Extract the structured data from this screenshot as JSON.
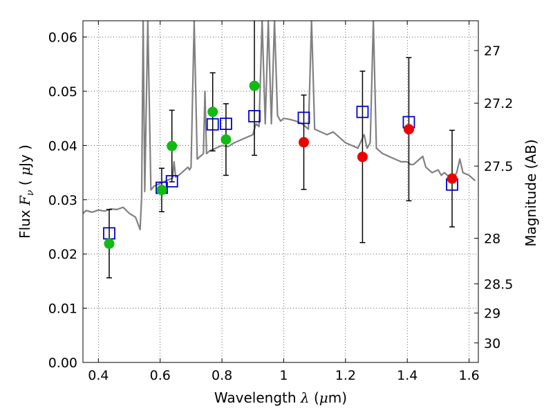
{
  "chart_data": {
    "type": "scatter",
    "xlabel": {
      "text": "Wavelength",
      "symbol": "λ",
      "unit_open": "(",
      "unit_mu": "μ",
      "unit_rest": "m)"
    },
    "ylabel": {
      "text": "Flux",
      "symbol": "F",
      "subscript": "ν",
      "unit_open": "(",
      "unit_mu": "μ",
      "unit_rest": "Jy )"
    },
    "y2label": "Magnitude (AB)",
    "xlim": [
      0.35,
      1.63
    ],
    "ylim": [
      0.0,
      0.063
    ],
    "x_ticks": [
      {
        "value": 0.4,
        "label": "0.4"
      },
      {
        "value": 0.6,
        "label": "0.6"
      },
      {
        "value": 0.8,
        "label": "0.8"
      },
      {
        "value": 1.0,
        "label": "1"
      },
      {
        "value": 1.2,
        "label": "1.2"
      },
      {
        "value": 1.4,
        "label": "1.4"
      },
      {
        "value": 1.6,
        "label": "1.6"
      }
    ],
    "y_ticks": [
      {
        "value": 0.0,
        "label": "0.00"
      },
      {
        "value": 0.01,
        "label": "0.01"
      },
      {
        "value": 0.02,
        "label": "0.02"
      },
      {
        "value": 0.03,
        "label": "0.03"
      },
      {
        "value": 0.04,
        "label": "0.04"
      },
      {
        "value": 0.05,
        "label": "0.05"
      },
      {
        "value": 0.06,
        "label": "0.06"
      }
    ],
    "y2_ticks": [
      {
        "flux": 0.0575,
        "label": "27"
      },
      {
        "flux": 0.0478,
        "label": "27.2"
      },
      {
        "flux": 0.0362,
        "label": "27.5"
      },
      {
        "flux": 0.0229,
        "label": "28"
      },
      {
        "flux": 0.0145,
        "label": "28.5"
      },
      {
        "flux": 0.0091,
        "label": "29"
      },
      {
        "flux": 0.0036,
        "label": "30"
      }
    ],
    "grid": true,
    "colors": {
      "model": "#808080",
      "model_points": "#0000cc",
      "optical_obs": "#11bb11",
      "nir_obs": "#ee0000",
      "errorbar": "#000000"
    },
    "model_spectrum": [
      [
        0.35,
        0.0275
      ],
      [
        0.36,
        0.028
      ],
      [
        0.38,
        0.0277
      ],
      [
        0.4,
        0.0281
      ],
      [
        0.42,
        0.0279
      ],
      [
        0.44,
        0.0283
      ],
      [
        0.46,
        0.0282
      ],
      [
        0.48,
        0.0286
      ],
      [
        0.5,
        0.0275
      ],
      [
        0.52,
        0.0268
      ],
      [
        0.535,
        0.0245
      ],
      [
        0.54,
        0.0305
      ],
      [
        0.545,
        0.063
      ],
      [
        0.55,
        0.0315
      ],
      [
        0.56,
        0.063
      ],
      [
        0.57,
        0.0318
      ],
      [
        0.58,
        0.0325
      ],
      [
        0.6,
        0.033
      ],
      [
        0.62,
        0.0335
      ],
      [
        0.64,
        0.034
      ],
      [
        0.645,
        0.037
      ],
      [
        0.65,
        0.0342
      ],
      [
        0.66,
        0.0345
      ],
      [
        0.67,
        0.035
      ],
      [
        0.68,
        0.0355
      ],
      [
        0.69,
        0.036
      ],
      [
        0.695,
        0.0355
      ],
      [
        0.7,
        0.036
      ],
      [
        0.71,
        0.063
      ],
      [
        0.72,
        0.0375
      ],
      [
        0.73,
        0.038
      ],
      [
        0.74,
        0.0385
      ],
      [
        0.745,
        0.05
      ],
      [
        0.75,
        0.0385
      ],
      [
        0.76,
        0.039
      ],
      [
        0.78,
        0.0395
      ],
      [
        0.8,
        0.04
      ],
      [
        0.82,
        0.0398
      ],
      [
        0.84,
        0.0405
      ],
      [
        0.86,
        0.041
      ],
      [
        0.88,
        0.0415
      ],
      [
        0.9,
        0.042
      ],
      [
        0.91,
        0.044
      ],
      [
        0.92,
        0.0435
      ],
      [
        0.93,
        0.063
      ],
      [
        0.94,
        0.044
      ],
      [
        0.95,
        0.063
      ],
      [
        0.96,
        0.044
      ],
      [
        0.97,
        0.063
      ],
      [
        0.98,
        0.0455
      ],
      [
        0.99,
        0.0445
      ],
      [
        1.0,
        0.045
      ],
      [
        1.02,
        0.0448
      ],
      [
        1.04,
        0.0445
      ],
      [
        1.06,
        0.044
      ],
      [
        1.08,
        0.043
      ],
      [
        1.09,
        0.063
      ],
      [
        1.1,
        0.043
      ],
      [
        1.12,
        0.0425
      ],
      [
        1.14,
        0.042
      ],
      [
        1.16,
        0.0425
      ],
      [
        1.18,
        0.0415
      ],
      [
        1.2,
        0.0405
      ],
      [
        1.22,
        0.04
      ],
      [
        1.24,
        0.0395
      ],
      [
        1.26,
        0.042
      ],
      [
        1.27,
        0.0395
      ],
      [
        1.28,
        0.0405
      ],
      [
        1.29,
        0.063
      ],
      [
        1.3,
        0.0395
      ],
      [
        1.32,
        0.0385
      ],
      [
        1.34,
        0.038
      ],
      [
        1.36,
        0.0375
      ],
      [
        1.38,
        0.037
      ],
      [
        1.4,
        0.037
      ],
      [
        1.41,
        0.0365
      ],
      [
        1.42,
        0.0365
      ],
      [
        1.45,
        0.038
      ],
      [
        1.46,
        0.036
      ],
      [
        1.48,
        0.035
      ],
      [
        1.5,
        0.0355
      ],
      [
        1.51,
        0.0345
      ],
      [
        1.52,
        0.035
      ],
      [
        1.53,
        0.0345
      ],
      [
        1.55,
        0.034
      ],
      [
        1.56,
        0.035
      ],
      [
        1.57,
        0.0375
      ],
      [
        1.58,
        0.035
      ],
      [
        1.6,
        0.0345
      ],
      [
        1.62,
        0.0335
      ]
    ],
    "model_points": [
      {
        "x": 0.435,
        "y": 0.0238
      },
      {
        "x": 0.605,
        "y": 0.0322
      },
      {
        "x": 0.638,
        "y": 0.0334
      },
      {
        "x": 0.77,
        "y": 0.0439
      },
      {
        "x": 0.813,
        "y": 0.044
      },
      {
        "x": 0.905,
        "y": 0.0454
      },
      {
        "x": 1.065,
        "y": 0.0451
      },
      {
        "x": 1.255,
        "y": 0.0462
      },
      {
        "x": 1.405,
        "y": 0.0443
      },
      {
        "x": 1.545,
        "y": 0.0328
      }
    ],
    "optical_obs": [
      {
        "x": 0.435,
        "y": 0.0219,
        "yerr": 0.0063
      },
      {
        "x": 0.605,
        "y": 0.0318,
        "yerr": 0.004
      },
      {
        "x": 0.638,
        "y": 0.0399,
        "yerr": 0.0066
      },
      {
        "x": 0.77,
        "y": 0.0462,
        "yerr": 0.0072
      },
      {
        "x": 0.813,
        "y": 0.0411,
        "yerr": 0.0066
      },
      {
        "x": 0.905,
        "y": 0.051,
        "yerr": 0.0128
      }
    ],
    "nir_obs": [
      {
        "x": 1.065,
        "y": 0.0406,
        "yerr": 0.0087
      },
      {
        "x": 1.255,
        "y": 0.0379,
        "yerr": 0.0158
      },
      {
        "x": 1.405,
        "y": 0.043,
        "yerr": 0.0132
      },
      {
        "x": 1.545,
        "y": 0.0339,
        "yerr": 0.0089
      }
    ]
  }
}
